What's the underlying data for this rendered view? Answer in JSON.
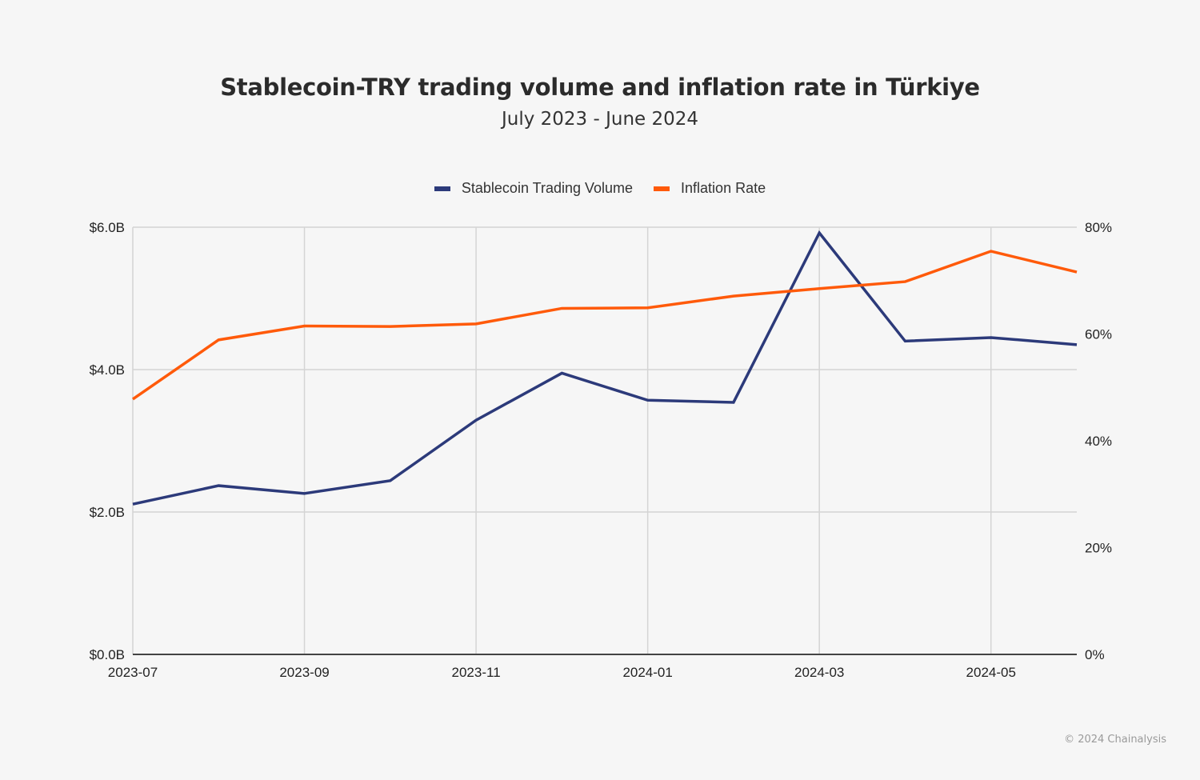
{
  "chart_data": {
    "type": "line",
    "title": "Stablecoin-TRY trading volume and inflation rate in Türkiye",
    "subtitle": "July 2023 - June 2024",
    "x": [
      "2023-07",
      "2023-08",
      "2023-09",
      "2023-10",
      "2023-11",
      "2023-12",
      "2024-01",
      "2024-02",
      "2024-03",
      "2024-04",
      "2024-05",
      "2024-06"
    ],
    "x_tick_labels": [
      "2023-07",
      "2023-09",
      "2023-11",
      "2024-01",
      "2024-03",
      "2024-05"
    ],
    "series": [
      {
        "name": "Stablecoin Trading Volume",
        "axis": "left",
        "unit": "USD billions",
        "color": "#2c3a7a",
        "values": [
          2.11,
          2.37,
          2.26,
          2.44,
          3.29,
          3.95,
          3.57,
          3.54,
          5.92,
          4.4,
          4.45,
          4.35
        ]
      },
      {
        "name": "Inflation Rate",
        "axis": "right",
        "unit": "percent",
        "color": "#ff5a0a",
        "values": [
          47.8,
          58.9,
          61.5,
          61.4,
          61.9,
          64.8,
          64.9,
          67.1,
          68.5,
          69.8,
          75.5,
          71.6
        ]
      }
    ],
    "left_axis": {
      "range": [
        0,
        6
      ],
      "ticks": [
        0,
        2,
        4,
        6
      ],
      "tick_labels": [
        "$0.0B",
        "$2.0B",
        "$4.0B",
        "$6.0B"
      ]
    },
    "right_axis": {
      "range": [
        0,
        80
      ],
      "ticks": [
        0,
        20,
        40,
        60,
        80
      ],
      "tick_labels": [
        "0%",
        "20%",
        "40%",
        "60%",
        "80%"
      ]
    },
    "grid": true,
    "legend_position": "top-center",
    "xlabel": "",
    "ylabel": ""
  },
  "footer": {
    "copyright": "© 2024 Chainalysis"
  }
}
